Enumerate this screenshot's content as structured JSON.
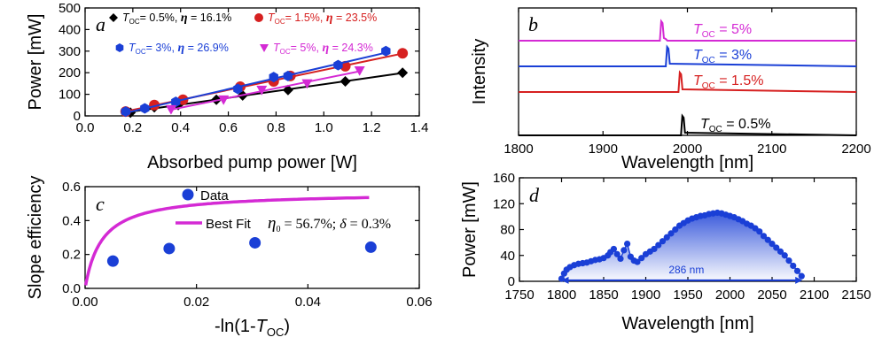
{
  "chart_data": [
    {
      "id": "a",
      "type": "scatter",
      "panel_label": "a",
      "xlabel": "Absorbed pump power [W]",
      "ylabel": "Power [mW]",
      "xlim": [
        0.0,
        1.4
      ],
      "ylim": [
        0,
        500
      ],
      "xticks": [
        "0.0",
        "0.2",
        "0.4",
        "0.6",
        "0.8",
        "1.0",
        "1.2",
        "1.4"
      ],
      "yticks": [
        "0",
        "100",
        "200",
        "300",
        "400",
        "500"
      ],
      "series": [
        {
          "name": "T_OC = 0.5%, η = 16.1%",
          "legend_pre": "T",
          "legend_sub": "OC",
          "legend_post": "= 0.5%, ",
          "legend_eta": "η",
          "legend_eta_val": " = 16.1%",
          "color": "#000000",
          "marker": "diamond",
          "x": [
            0.19,
            0.29,
            0.39,
            0.55,
            0.66,
            0.85,
            1.09,
            1.33
          ],
          "y": [
            15,
            40,
            50,
            75,
            95,
            120,
            160,
            200
          ]
        },
        {
          "name": "T_OC = 1.5%, η = 23.5%",
          "legend_pre": "T",
          "legend_sub": "OC",
          "legend_post": "= 1.5%, ",
          "legend_eta": "η",
          "legend_eta_val": " = 23.5%",
          "color": "#d62020",
          "marker": "circle",
          "x": [
            0.17,
            0.29,
            0.41,
            0.65,
            0.79,
            0.86,
            1.09,
            1.33
          ],
          "y": [
            20,
            50,
            75,
            135,
            160,
            185,
            230,
            290
          ]
        },
        {
          "name": "T_OC = 3%, η = 26.9%",
          "legend_pre": "T",
          "legend_sub": "OC",
          "legend_post": "= 3%, ",
          "legend_eta": "η",
          "legend_eta_val": " = 26.9%",
          "color": "#1a3fd6",
          "marker": "hexagon",
          "x": [
            0.17,
            0.25,
            0.38,
            0.64,
            0.79,
            0.85,
            1.06,
            1.26
          ],
          "y": [
            20,
            35,
            65,
            125,
            180,
            185,
            235,
            300
          ]
        },
        {
          "name": "T_OC = 5%, η = 24.3%",
          "legend_pre": "T",
          "legend_sub": "OC",
          "legend_post": "= 5%, ",
          "legend_eta": "η",
          "legend_eta_val": " = 24.3%",
          "color": "#d42ad4",
          "marker": "triangle-down",
          "x": [
            0.36,
            0.58,
            0.74,
            0.93,
            1.15
          ],
          "y": [
            30,
            75,
            120,
            150,
            210
          ]
        }
      ]
    },
    {
      "id": "b",
      "type": "line",
      "panel_label": "b",
      "xlabel": "Wavelength [nm]",
      "ylabel": "Intensity",
      "xlim": [
        1800,
        2200
      ],
      "xticks": [
        "1800",
        "1900",
        "2000",
        "2100",
        "2200"
      ],
      "series": [
        {
          "name": "T_OC = 5%",
          "label_pre": "T",
          "label_sub": "OC",
          "label_post": " = 5%",
          "color": "#d42ad4",
          "peak_nm": 1970
        },
        {
          "name": "T_OC = 3%",
          "label_pre": "T",
          "label_sub": "OC",
          "label_post": " = 3%",
          "color": "#1a3fd6",
          "peak_nm": 1977
        },
        {
          "name": "T_OC = 1.5%",
          "label_pre": "T",
          "label_sub": "OC",
          "label_post": " = 1.5%",
          "color": "#d62020",
          "peak_nm": 1992
        },
        {
          "name": "T_OC = 0.5%",
          "label_pre": "T",
          "label_sub": "OC",
          "label_post": " = 0.5%",
          "color": "#000000",
          "peak_nm": 1995
        }
      ]
    },
    {
      "id": "c",
      "type": "scatter",
      "panel_label": "c",
      "xlabel_pre": "-ln(1-",
      "xlabel_T": "T",
      "xlabel_sub": "OC",
      "xlabel_post": ")",
      "ylabel": "Slope efficiency",
      "xlim": [
        0.0,
        0.06
      ],
      "ylim": [
        0.0,
        0.6
      ],
      "xticks": [
        "0.00",
        "0.02",
        "0.04",
        "0.06"
      ],
      "yticks": [
        "0.0",
        "0.2",
        "0.4",
        "0.6"
      ],
      "legend_data": "Data",
      "legend_fit": "Best Fit",
      "fit_text_eta": "η",
      "fit_text_sub": "0",
      "fit_text_rest": " = 56.7%; ",
      "fit_text_delta": "δ",
      "fit_text_delta_val": " = 0.3%",
      "fit_params": {
        "eta0": 0.567,
        "delta": 0.003
      },
      "series": [
        {
          "name": "Data",
          "color": "#1a3fd6",
          "x": [
            0.005,
            0.0151,
            0.0305,
            0.0513
          ],
          "y": [
            0.161,
            0.235,
            0.269,
            0.243
          ]
        }
      ]
    },
    {
      "id": "d",
      "type": "scatter",
      "panel_label": "d",
      "xlabel": "Wavelength [nm]",
      "ylabel": "Power [mW]",
      "xlim": [
        1750,
        2150
      ],
      "ylim": [
        0,
        160
      ],
      "xticks": [
        "1750",
        "1800",
        "1850",
        "1900",
        "1950",
        "2000",
        "2050",
        "2100",
        "2150"
      ],
      "yticks": [
        "0",
        "40",
        "80",
        "120",
        "160"
      ],
      "annotation": "286 nm",
      "range_nm": [
        1800,
        2086
      ],
      "color": "#1a3fd6",
      "x": [
        1800,
        1803,
        1806,
        1810,
        1815,
        1820,
        1825,
        1830,
        1835,
        1840,
        1845,
        1850,
        1855,
        1858,
        1862,
        1866,
        1870,
        1874,
        1878,
        1882,
        1886,
        1890,
        1895,
        1900,
        1905,
        1910,
        1915,
        1920,
        1925,
        1930,
        1935,
        1940,
        1945,
        1950,
        1955,
        1960,
        1965,
        1970,
        1975,
        1980,
        1985,
        1990,
        1995,
        2000,
        2005,
        2010,
        2015,
        2020,
        2025,
        2030,
        2035,
        2040,
        2045,
        2050,
        2055,
        2060,
        2065,
        2070,
        2075,
        2080,
        2085
      ],
      "y": [
        4,
        12,
        18,
        22,
        25,
        27,
        28,
        29,
        31,
        33,
        34,
        36,
        40,
        45,
        50,
        42,
        35,
        48,
        58,
        38,
        32,
        30,
        36,
        42,
        46,
        50,
        56,
        62,
        68,
        74,
        80,
        86,
        90,
        94,
        97,
        99,
        101,
        102,
        104,
        105,
        106,
        105,
        103,
        101,
        99,
        96,
        93,
        89,
        86,
        82,
        77,
        70,
        64,
        58,
        52,
        46,
        40,
        32,
        24,
        16,
        8
      ]
    }
  ]
}
